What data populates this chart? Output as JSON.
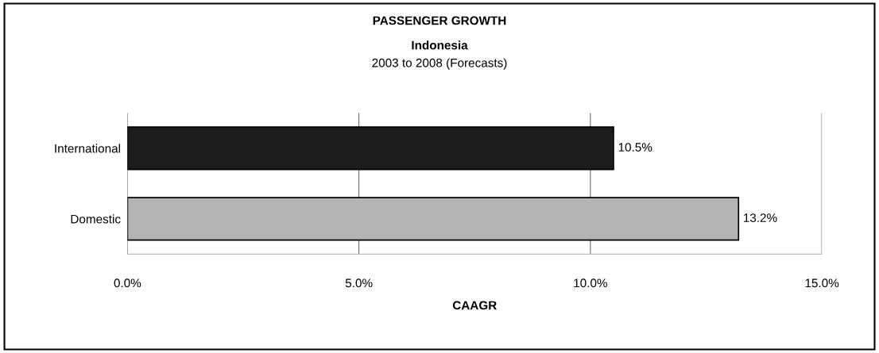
{
  "chart_data": {
    "type": "bar",
    "orientation": "horizontal",
    "title": "PASSENGER GROWTH",
    "subtitle": "Indonesia\n2003 to 2008 (Forecasts)",
    "xlabel": "CAAGR",
    "categories": [
      "International",
      "Domestic"
    ],
    "values": [
      10.5,
      13.2
    ],
    "colors": [
      "#1c1c1c",
      "#b4b4b4"
    ],
    "value_labels": [
      "10.5%",
      "13.2%"
    ],
    "xlim": [
      0,
      15
    ],
    "xticks": [
      {
        "value": 0,
        "label": "0.0%"
      },
      {
        "value": 5,
        "label": "5.0%"
      },
      {
        "value": 10,
        "label": "10.0%"
      },
      {
        "value": 15,
        "label": "15.0%"
      }
    ],
    "grid": "x",
    "legend": false
  }
}
